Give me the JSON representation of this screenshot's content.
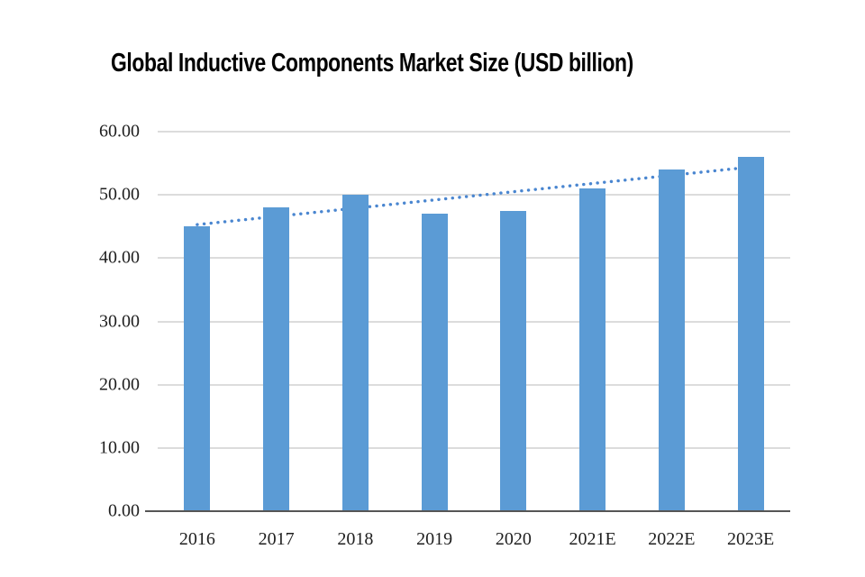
{
  "title": "Global Inductive Components Market Size (USD billion)",
  "chart_data": {
    "type": "bar",
    "title": "Global Inductive Components Market Size (USD billion)",
    "categories": [
      "2016",
      "2017",
      "2018",
      "2019",
      "2020",
      "2021E",
      "2022E",
      "2023E"
    ],
    "values": [
      45.0,
      48.0,
      50.0,
      47.0,
      47.5,
      51.0,
      54.0,
      56.0
    ],
    "xlabel": "",
    "ylabel": "",
    "ylim": [
      0,
      60
    ],
    "yticks": [
      0,
      10,
      20,
      30,
      40,
      50,
      60
    ],
    "ytick_labels": [
      "0.00",
      "10.00",
      "20.00",
      "30.00",
      "40.00",
      "50.00",
      "60.00"
    ],
    "grid": "horizontal",
    "legend": "none",
    "trendline": {
      "type": "linear",
      "style": "dotted",
      "start_value": 45.3,
      "end_value": 54.4
    },
    "colors": {
      "bar": "#5B9BD5",
      "trend": "#4A86D0",
      "grid": "#DCDCDC",
      "axis": "#565656",
      "tick_text": "#1F1F1F",
      "title_text": "#000000",
      "background": "#FFFFFF"
    }
  }
}
